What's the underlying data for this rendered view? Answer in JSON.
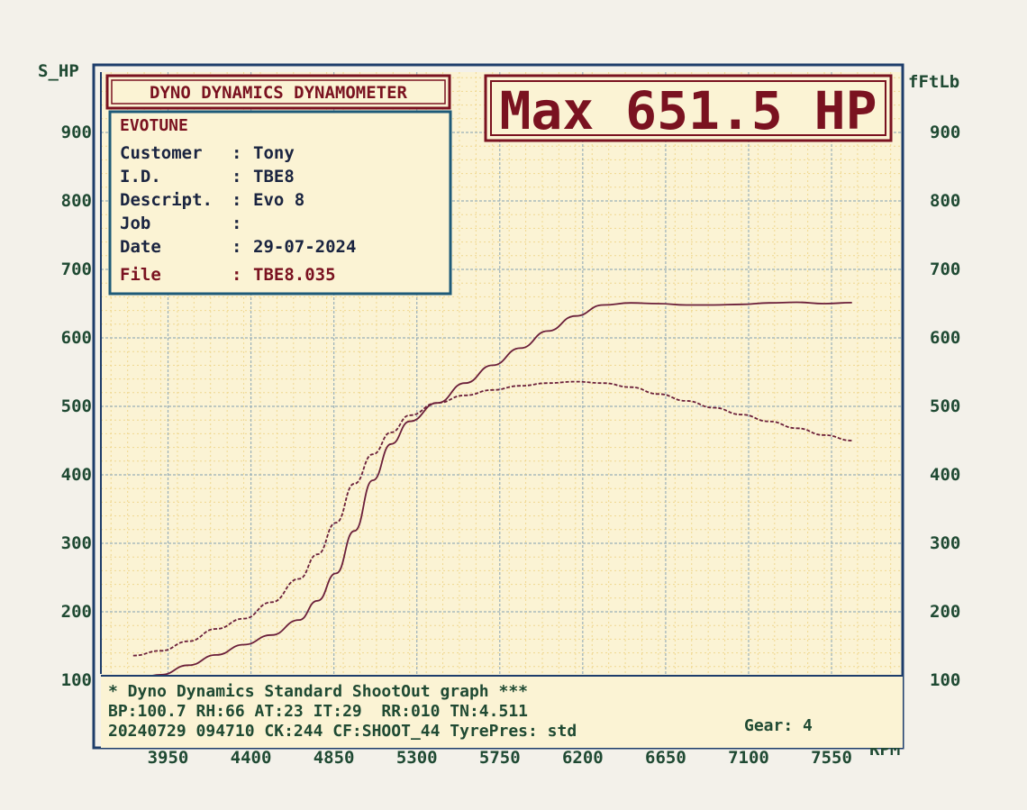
{
  "header": {
    "brand": "DYNO DYNAMICS DYNAMOMETER",
    "max_label": "Max 651.5 HP"
  },
  "info": {
    "shop": "EVOTUNE",
    "rows": [
      {
        "label": "Customer",
        "sep": ":",
        "value": "Tony"
      },
      {
        "label": "I.D.",
        "sep": ":",
        "value": "TBE8"
      },
      {
        "label": "Descript.",
        "sep": ":",
        "value": "Evo 8"
      },
      {
        "label": "Job",
        "sep": ":",
        "value": ""
      },
      {
        "label": "Date",
        "sep": ":",
        "value": "29-07-2024"
      },
      {
        "label": "File",
        "sep": ":",
        "value": "TBE8.035"
      }
    ]
  },
  "footer": {
    "line1": "* Dyno Dynamics Standard ShootOut graph ***",
    "line2": "BP:100.7 RH:66 AT:23 IT:29  RR:010 TN:4.511",
    "line3": "20240729 094710 CK:244 CF:SHOOT_44 TyrePres: std",
    "gear": "Gear: 4"
  },
  "colors": {
    "paper": "#f3f1ea",
    "grid_bg": "#fbf3d4",
    "grid_major": "#9ab0b8",
    "grid_minor": "#f0d890",
    "frame": "#1d3d6b",
    "ink_green": "#1f4a33",
    "ink_maroon": "#7a1220",
    "curve": "#6b1f3a"
  },
  "chart_data": {
    "type": "line",
    "xlabel": "RPM",
    "ylabel": "S_HP",
    "y2label": "fFtLb",
    "x_ticks": [
      3950,
      4400,
      4850,
      5300,
      5750,
      6200,
      6650,
      7100,
      7550
    ],
    "y_ticks": [
      100,
      200,
      300,
      400,
      500,
      600,
      700,
      800,
      900
    ],
    "y2_ticks": [
      100,
      200,
      300,
      400,
      500,
      600,
      700,
      800,
      900
    ],
    "xlim": [
      3625,
      7975
    ],
    "ylim": [
      100,
      1000
    ],
    "grid": true,
    "series": [
      {
        "name": "S_HP",
        "style": "solid",
        "x": [
          3800,
          3950,
          4100,
          4250,
          4400,
          4550,
          4700,
          4800,
          4900,
          5000,
          5100,
          5200,
          5300,
          5450,
          5600,
          5750,
          5900,
          6050,
          6200,
          6350,
          6500,
          6650,
          6800,
          6950,
          7100,
          7250,
          7400,
          7550,
          7700
        ],
        "y": [
          100,
          108,
          122,
          137,
          152,
          166,
          188,
          216,
          256,
          318,
          392,
          445,
          478,
          505,
          534,
          560,
          585,
          610,
          632,
          648,
          651,
          650,
          648,
          648,
          649,
          651,
          652,
          650,
          651.5
        ]
      },
      {
        "name": "fFtLb",
        "style": "dashed",
        "x": [
          3600,
          3800,
          3950,
          4100,
          4250,
          4400,
          4550,
          4700,
          4800,
          4900,
          5000,
          5100,
          5200,
          5300,
          5450,
          5600,
          5750,
          5900,
          6050,
          6200,
          6350,
          6500,
          6650,
          6800,
          6950,
          7100,
          7250,
          7400,
          7550,
          7700
        ],
        "y": [
          130,
          136,
          143,
          157,
          175,
          190,
          214,
          248,
          284,
          330,
          387,
          430,
          462,
          487,
          505,
          516,
          524,
          530,
          534,
          536,
          534,
          528,
          518,
          508,
          498,
          488,
          478,
          468,
          458,
          450
        ]
      }
    ]
  }
}
